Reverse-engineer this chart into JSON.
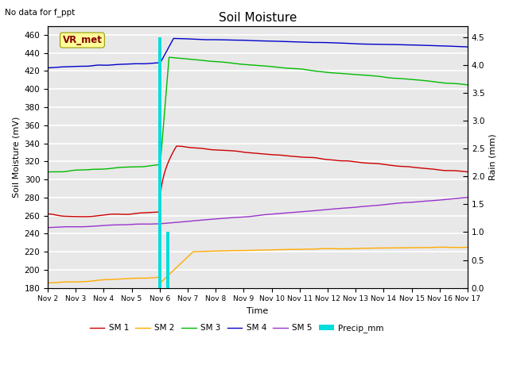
{
  "title": "Soil Moisture",
  "subtitle": "No data for f_ppt",
  "xlabel": "Time",
  "ylabel_left": "Soil Moisture (mV)",
  "ylabel_right": "Rain (mm)",
  "ylim_left": [
    180,
    470
  ],
  "ylim_right": [
    0.0,
    4.7
  ],
  "yticks_left": [
    180,
    200,
    220,
    240,
    260,
    280,
    300,
    320,
    340,
    360,
    380,
    400,
    420,
    440,
    460
  ],
  "yticks_right": [
    0.0,
    0.5,
    1.0,
    1.5,
    2.0,
    2.5,
    3.0,
    3.5,
    4.0,
    4.5
  ],
  "colors": {
    "SM1": "#cc0000",
    "SM2": "#ffaa00",
    "SM3": "#00bb00",
    "SM4": "#0000cc",
    "SM5": "#9933cc",
    "Precip": "#00dddd"
  },
  "bg_color": "#e8e8e8",
  "grid_color": "#ffffff",
  "vr_met_box_color": "#ffff99",
  "vr_met_text_color": "#880000"
}
